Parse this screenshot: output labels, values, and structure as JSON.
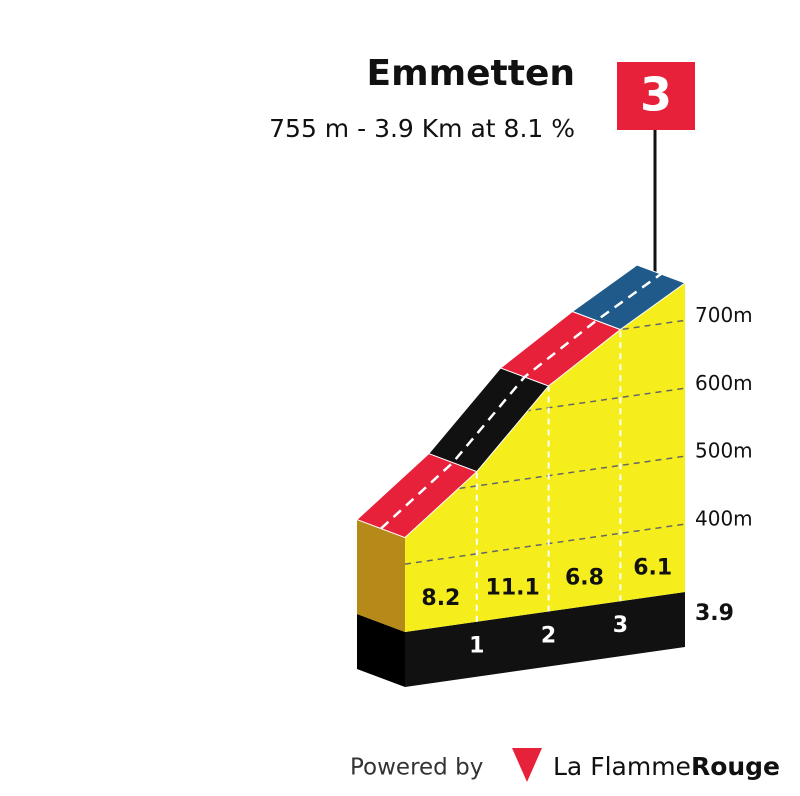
{
  "chart_data": {
    "type": "climb-profile",
    "title": "Emmetten",
    "subtitle": "755 m - 3.9 Km at 8.1 %",
    "category": 3,
    "km_markers": [
      1,
      2,
      3
    ],
    "distance": 3.9,
    "summit": 755,
    "values": [
      8.2,
      11.1,
      6.8,
      6.1
    ],
    "colors": [
      "#e8213a",
      "#111111",
      "#e8213a",
      "#1f5a8a"
    ],
    "ylim": [
      300,
      755
    ],
    "yticks": [
      {
        "value": 400,
        "label": "400m"
      },
      {
        "value": 500,
        "label": "500m"
      },
      {
        "value": 600,
        "label": "600m"
      },
      {
        "value": 700,
        "label": "700m"
      }
    ],
    "footer": {
      "powered": "Powered by",
      "brand": "La Flamme",
      "brand_bold": "Rouge"
    }
  }
}
